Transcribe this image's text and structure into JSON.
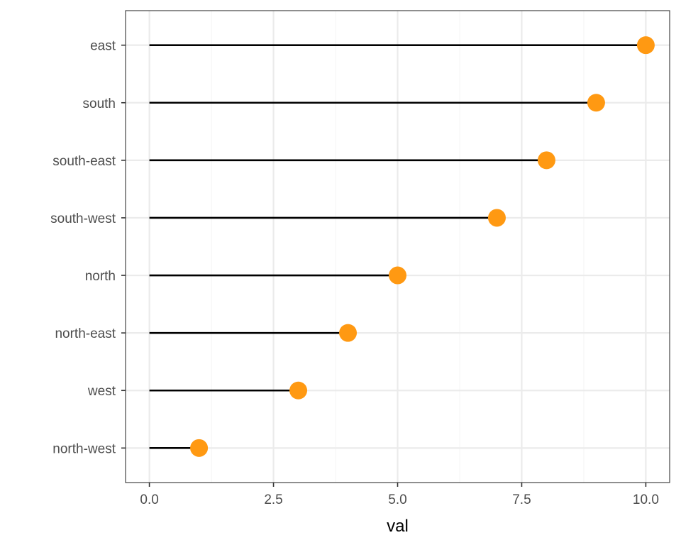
{
  "chart_data": {
    "type": "lollipop",
    "orientation": "horizontal",
    "title": "",
    "xlabel": "val",
    "ylabel": "",
    "categories": [
      "east",
      "south",
      "south-east",
      "south-west",
      "north",
      "north-east",
      "west",
      "north-west"
    ],
    "values": [
      10,
      9,
      8,
      7,
      5,
      4,
      3,
      1
    ],
    "xlim": [
      -0.48,
      10.48
    ],
    "x_ticks": [
      0,
      2.5,
      5,
      7.5,
      10
    ],
    "x_tick_labels": [
      "0.0",
      "2.5",
      "5.0",
      "7.5",
      "10.0"
    ],
    "grid": true,
    "legend": "none",
    "colors": {
      "point": "#ff9912",
      "stem": "#000000",
      "grid_major": "#ebebeb",
      "grid_minor": "#f5f5f5",
      "panel_border": "#333333",
      "tick_label": "#4d4d4d"
    }
  }
}
